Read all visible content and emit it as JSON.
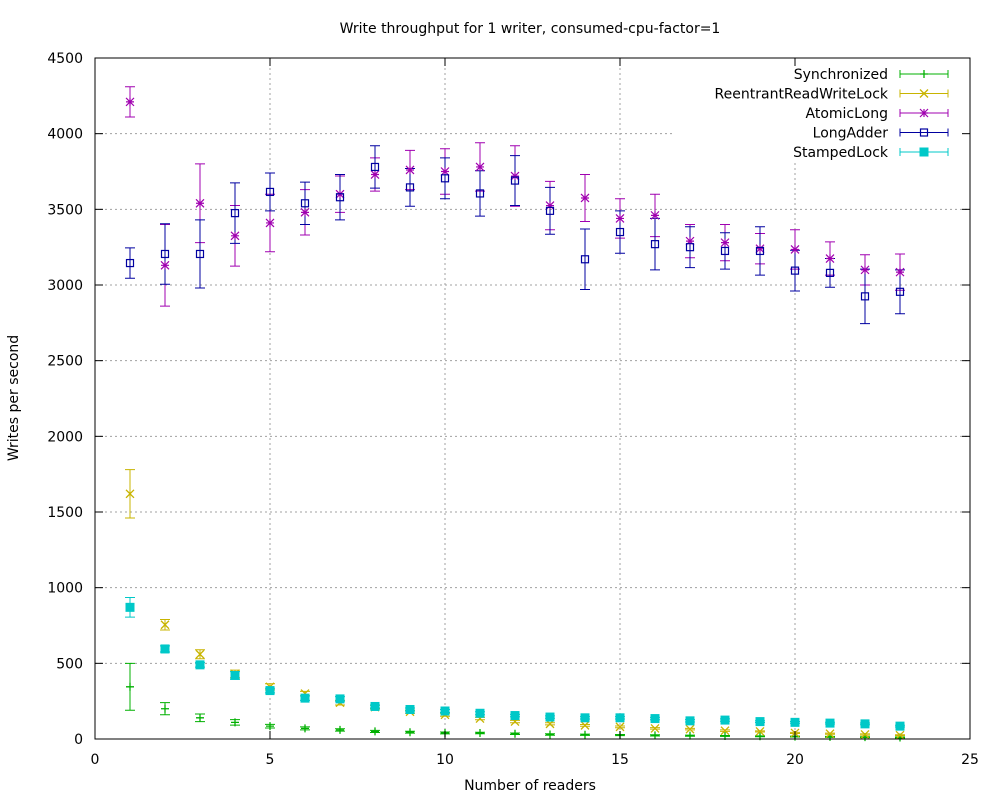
{
  "chart_data": {
    "type": "scatter",
    "title": "Write throughput for 1 writer, consumed-cpu-factor=1",
    "xlabel": "Number of readers",
    "ylabel": "Writes per second",
    "xlim": [
      0,
      25
    ],
    "ylim": [
      0,
      4500
    ],
    "xticks": [
      "0",
      "5",
      "10",
      "15",
      "20",
      "25"
    ],
    "yticks": [
      "0",
      "500",
      "1000",
      "1500",
      "2000",
      "2500",
      "3000",
      "3500",
      "4000",
      "4500"
    ],
    "grid": true,
    "legend_position": "top-right",
    "x": [
      1,
      2,
      3,
      4,
      5,
      6,
      7,
      8,
      9,
      10,
      11,
      12,
      13,
      14,
      15,
      16,
      17,
      18,
      19,
      20,
      21,
      22,
      23
    ],
    "series": [
      {
        "name": "Synchronized",
        "color": "#00b000",
        "marker": "plus",
        "values": [
          345,
          200,
          140,
          110,
          85,
          70,
          60,
          50,
          45,
          40,
          40,
          35,
          30,
          28,
          26,
          24,
          22,
          20,
          18,
          16,
          14,
          12,
          10
        ],
        "err": [
          155,
          40,
          25,
          18,
          12,
          10,
          8,
          7,
          6,
          6,
          5,
          5,
          5,
          4,
          4,
          4,
          4,
          3,
          3,
          3,
          3,
          3,
          3
        ]
      },
      {
        "name": "ReentrantReadWriteLock",
        "color": "#c8b400",
        "marker": "cross",
        "values": [
          1620,
          755,
          560,
          430,
          345,
          300,
          240,
          210,
          180,
          160,
          135,
          115,
          100,
          90,
          80,
          70,
          65,
          55,
          50,
          40,
          35,
          30,
          25
        ],
        "err": [
          160,
          35,
          30,
          25,
          20,
          15,
          15,
          12,
          10,
          10,
          8,
          8,
          7,
          6,
          6,
          5,
          5,
          5,
          4,
          4,
          4,
          4,
          3
        ]
      },
      {
        "name": "AtomicLong",
        "color": "#a000b0",
        "marker": "star",
        "values": [
          4210,
          3130,
          3540,
          3325,
          3410,
          3480,
          3600,
          3730,
          3760,
          3750,
          3780,
          3720,
          3525,
          3575,
          3440,
          3460,
          3290,
          3280,
          3240,
          3235,
          3175,
          3100,
          3085
        ],
        "err": [
          100,
          270,
          260,
          200,
          190,
          150,
          120,
          110,
          130,
          150,
          160,
          200,
          160,
          155,
          130,
          140,
          110,
          120,
          100,
          130,
          110,
          100,
          120
        ]
      },
      {
        "name": "LongAdder",
        "color": "#0000a0",
        "marker": "square",
        "values": [
          3145,
          3205,
          3205,
          3475,
          3615,
          3540,
          3580,
          3780,
          3645,
          3705,
          3605,
          3690,
          3490,
          3170,
          3350,
          3270,
          3250,
          3225,
          3225,
          3095,
          3080,
          2925,
          2955
        ],
        "err": [
          100,
          200,
          225,
          200,
          125,
          140,
          150,
          140,
          125,
          135,
          150,
          165,
          155,
          200,
          140,
          170,
          135,
          120,
          160,
          135,
          95,
          180,
          145
        ]
      },
      {
        "name": "StampedLock",
        "color": "#00c8c8",
        "marker": "filled-square",
        "values": [
          870,
          595,
          490,
          420,
          320,
          270,
          265,
          215,
          195,
          185,
          170,
          155,
          145,
          140,
          140,
          135,
          120,
          125,
          115,
          110,
          105,
          100,
          85
        ],
        "err": [
          65,
          20,
          15,
          25,
          15,
          15,
          15,
          10,
          10,
          10,
          10,
          8,
          8,
          8,
          8,
          8,
          8,
          8,
          6,
          6,
          6,
          6,
          6
        ]
      }
    ]
  }
}
